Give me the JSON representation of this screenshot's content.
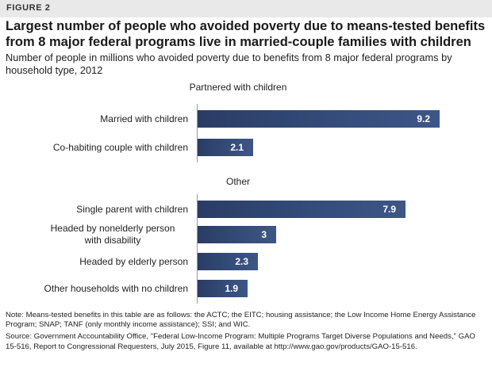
{
  "figure_label": "FIGURE 2",
  "title": "Largest number of people who avoided poverty due to means-tested benefits from 8 major federal programs live in married-couple families with children",
  "subtitle": "Number of people in millions who avoided poverty due to benefits from 8 major federal programs by household type, 2012",
  "chart_data": {
    "type": "bar",
    "orientation": "horizontal",
    "xlim": [
      0,
      9.2
    ],
    "grid": false,
    "groups": [
      {
        "label": "Partnered with children",
        "categories": [
          "Married with children",
          "Co-habiting couple with children"
        ],
        "values": [
          9.2,
          2.1
        ],
        "value_labels": [
          "9.2",
          "2.1"
        ]
      },
      {
        "label": "Other",
        "categories": [
          "Single parent with children",
          "Headed by nonelderly person with disability",
          "Headed by elderly person",
          "Other households with no children"
        ],
        "values": [
          7.9,
          3,
          2.3,
          1.9
        ],
        "value_labels": [
          "7.9",
          "3",
          "2.3",
          "1.9"
        ]
      }
    ],
    "bar_color": "#2f4670"
  },
  "note": "Note: Means-tested benefits in this table are as follows: the ACTC; the EITC; housing assistance; the Low Income Home Energy Assistance Program; SNAP; TANF (only monthly income assistance); SSI; and WIC.",
  "source": "Source: Government Accountability Office, \"Federal Low-Income Program: Multiple Programs Target Diverse Populations and Needs,\" GAO 15-516, Report to Congressional Requesters, July 2015, Figure 11, available at http://www.gao.gov/products/GAO-15-516."
}
